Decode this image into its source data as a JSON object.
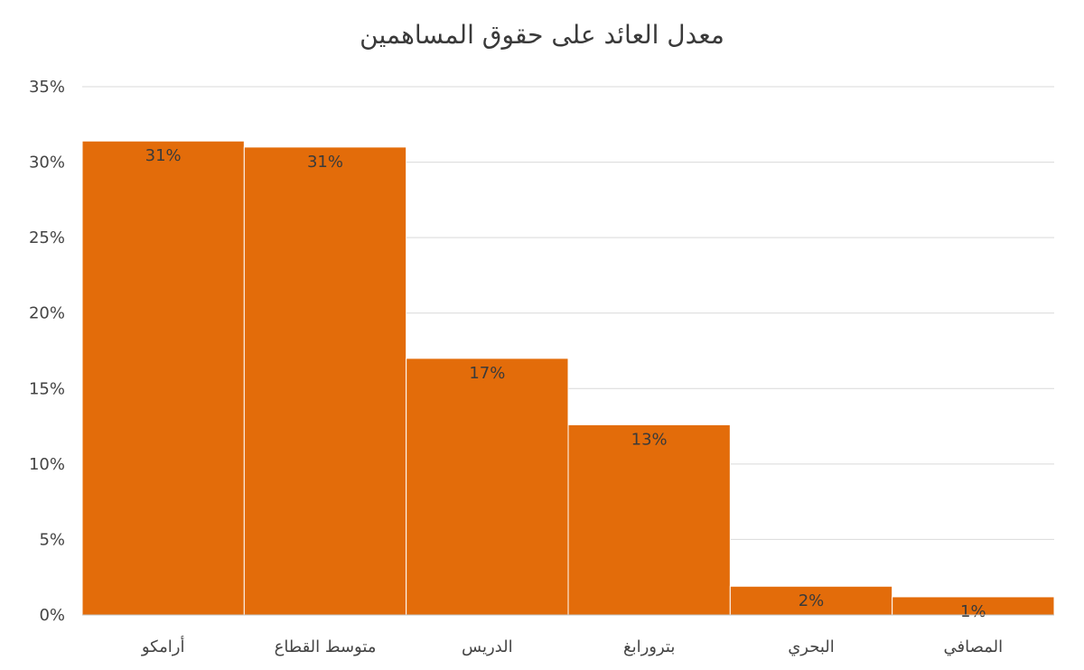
{
  "chart_data": {
    "type": "bar",
    "title": "معدل العائد على حقوق المساهمين",
    "categories": [
      "أرامكو",
      "متوسط القطاع",
      "الدريس",
      "بترورابغ",
      "البحري",
      "المصافي"
    ],
    "values": [
      31.4,
      31.0,
      17.0,
      12.6,
      1.9,
      1.2
    ],
    "data_labels": [
      "31%",
      "31%",
      "17%",
      "13%",
      "2%",
      "1%"
    ],
    "y_ticks": [
      "0%",
      "5%",
      "10%",
      "15%",
      "20%",
      "25%",
      "30%",
      "35%"
    ],
    "ylim": [
      0,
      35
    ],
    "grid": true,
    "legend": "none",
    "xlabel": "",
    "ylabel": "",
    "bar_color": "#E36C0A"
  }
}
